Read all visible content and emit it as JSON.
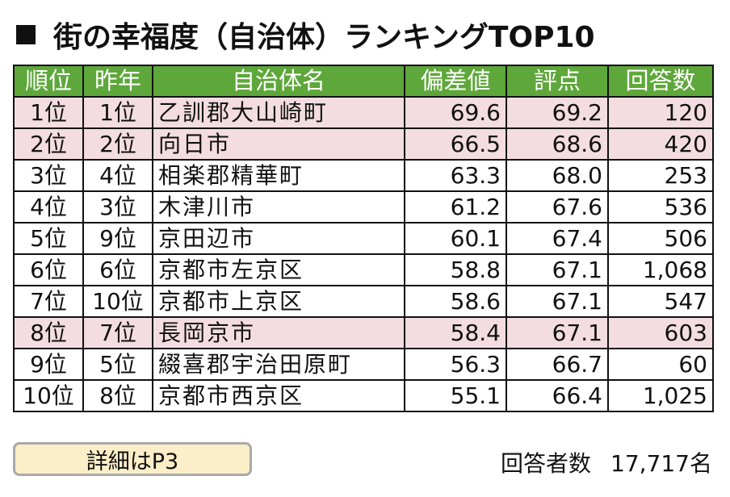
{
  "title": "街の幸福度（自治体）ランキングTOP10",
  "table": {
    "headers": [
      "順位",
      "昨年",
      "自治体名",
      "偏差値",
      "評点",
      "回答数"
    ],
    "rows": [
      {
        "rank": "1位",
        "last_year": "1位",
        "name": "乙訓郡大山崎町",
        "deviation": "69.6",
        "score": "69.2",
        "responses": "120",
        "highlight": true
      },
      {
        "rank": "2位",
        "last_year": "2位",
        "name": "向日市",
        "deviation": "66.5",
        "score": "68.6",
        "responses": "420",
        "highlight": true
      },
      {
        "rank": "3位",
        "last_year": "4位",
        "name": "相楽郡精華町",
        "deviation": "63.3",
        "score": "68.0",
        "responses": "253",
        "highlight": false
      },
      {
        "rank": "4位",
        "last_year": "3位",
        "name": "木津川市",
        "deviation": "61.2",
        "score": "67.6",
        "responses": "536",
        "highlight": false
      },
      {
        "rank": "5位",
        "last_year": "9位",
        "name": "京田辺市",
        "deviation": "60.1",
        "score": "67.4",
        "responses": "506",
        "highlight": false
      },
      {
        "rank": "6位",
        "last_year": "6位",
        "name": "京都市左京区",
        "deviation": "58.8",
        "score": "67.1",
        "responses": "1,068",
        "highlight": false
      },
      {
        "rank": "7位",
        "last_year": "10位",
        "name": "京都市上京区",
        "deviation": "58.6",
        "score": "67.1",
        "responses": "547",
        "highlight": false
      },
      {
        "rank": "8位",
        "last_year": "7位",
        "name": "長岡京市",
        "deviation": "58.4",
        "score": "67.1",
        "responses": "603",
        "highlight": true
      },
      {
        "rank": "9位",
        "last_year": "5位",
        "name": "綴喜郡宇治田原町",
        "deviation": "56.3",
        "score": "66.7",
        "responses": "60",
        "highlight": false
      },
      {
        "rank": "10位",
        "last_year": "8位",
        "name": "京都市西京区",
        "deviation": "55.1",
        "score": "66.4",
        "responses": "1,025",
        "highlight": false
      }
    ]
  },
  "detail_button": "詳細はP3",
  "footer": {
    "label": "回答者数",
    "value": "17,717名"
  },
  "colors": {
    "header_bg": "#5ea73a",
    "highlight_row": "#f3dde0",
    "button_bg": "#fbeec8"
  }
}
